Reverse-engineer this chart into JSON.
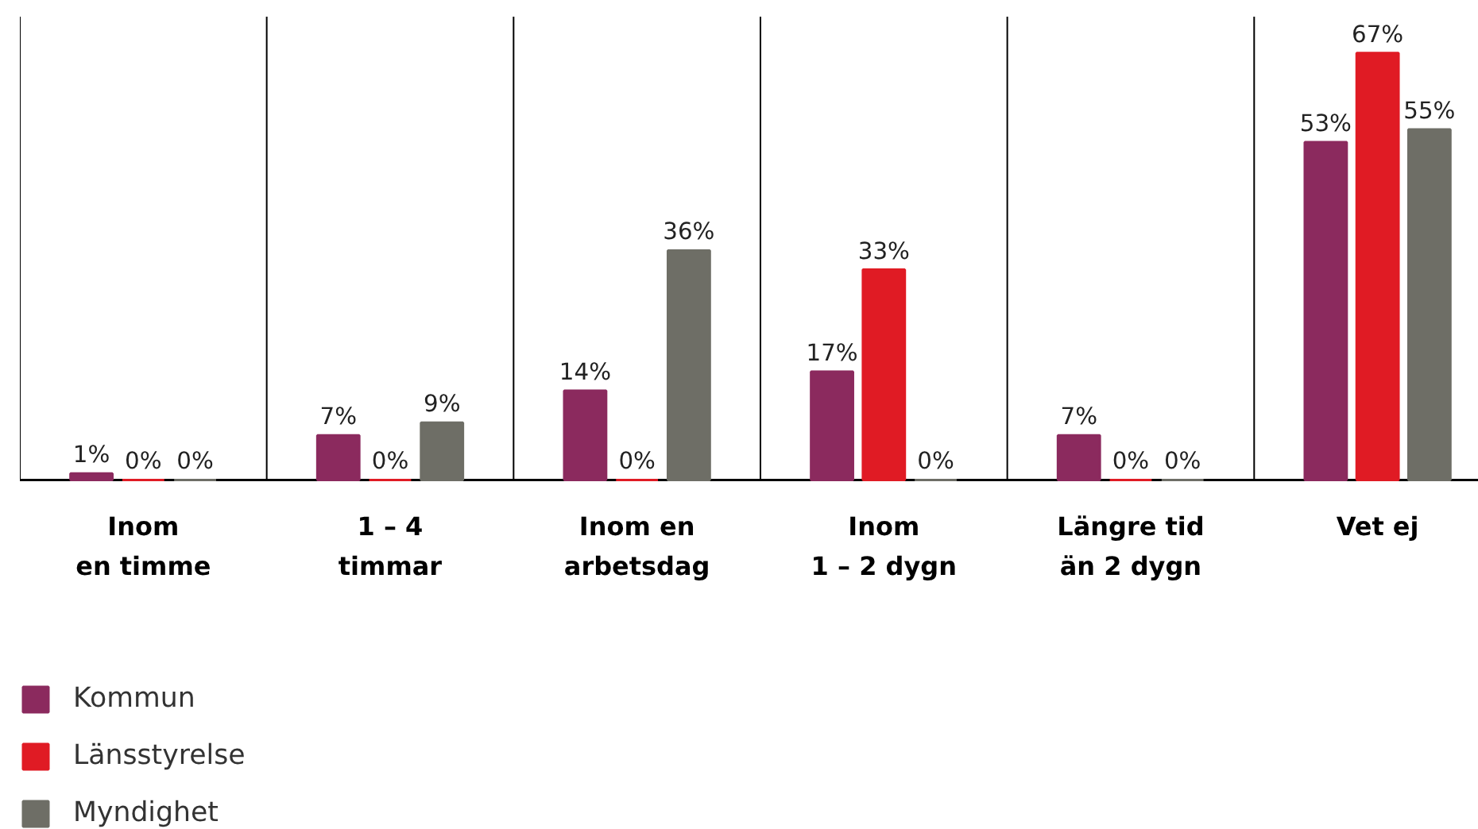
{
  "chart_data": {
    "type": "bar",
    "categories": [
      "Inom\nen timme",
      "1 – 4\ntimmar",
      "Inom en\narbetsdag",
      "Inom\n1 – 2 dygn",
      "Längre tid\nän 2 dygn",
      "Vet ej"
    ],
    "series": [
      {
        "name": "Kommun",
        "color": "#8b2a5e",
        "values": [
          1,
          7,
          14,
          17,
          7,
          53
        ],
        "value_labels": [
          "1%",
          "7%",
          "14%",
          "17%",
          "7%",
          "53%"
        ]
      },
      {
        "name": "Länsstyrelse",
        "color": "#e01b24",
        "values": [
          0,
          0,
          0,
          33,
          0,
          67
        ],
        "value_labels": [
          "0%",
          "0%",
          "0%",
          "33%",
          "0%",
          "67%"
        ]
      },
      {
        "name": "Myndighet",
        "color": "#6e6e66",
        "values": [
          0,
          9,
          36,
          0,
          0,
          55
        ],
        "value_labels": [
          "0%",
          "9%",
          "36%",
          "0%",
          "0%",
          "55%"
        ]
      }
    ],
    "legend": "bottom left"
  }
}
